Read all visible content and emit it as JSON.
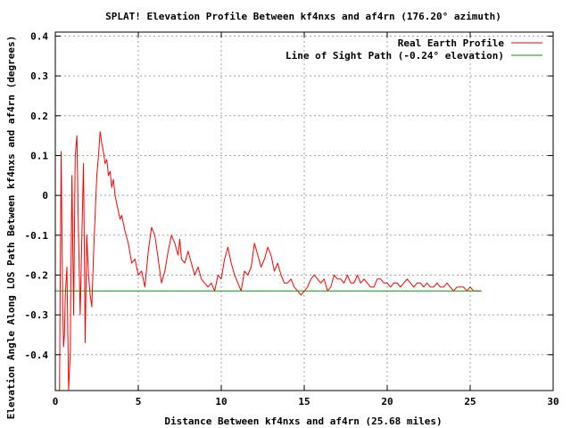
{
  "chart_data": {
    "type": "line",
    "title": "SPLAT! Elevation Profile Between kf4nxs and af4rn (176.20° azimuth)",
    "xlabel": "Distance Between kf4nxs and af4rn (25.68 miles)",
    "ylabel": "Elevation Angle Along LOS Path Between kf4nxs and af4rn (degrees)",
    "xlim": [
      0,
      30
    ],
    "ylim": [
      -0.49,
      0.41
    ],
    "x_ticks": [
      0,
      5,
      10,
      15,
      20,
      25,
      30
    ],
    "x_tick_labels": [
      "0",
      "5",
      "10",
      "15",
      "20",
      "25",
      "30"
    ],
    "y_ticks": [
      -0.4,
      -0.3,
      -0.2,
      -0.1,
      0,
      0.1,
      0.2,
      0.3,
      0.4
    ],
    "y_tick_labels": [
      "-0.4",
      "-0.3",
      "-0.2",
      "-0.1",
      "0",
      "0.1",
      "0.2",
      "0.3",
      "0.4"
    ],
    "grid": true,
    "legend_position": "top-right",
    "series": [
      {
        "name": "Real Earth Profile",
        "color": "#ff0000",
        "x": [
          0.25,
          0.35,
          0.45,
          0.5,
          0.55,
          0.6,
          0.7,
          0.8,
          0.9,
          1.0,
          1.1,
          1.2,
          1.3,
          1.4,
          1.5,
          1.6,
          1.7,
          1.8,
          1.9,
          2.0,
          2.1,
          2.2,
          2.3,
          2.4,
          2.5,
          2.6,
          2.7,
          2.8,
          2.9,
          3.0,
          3.1,
          3.2,
          3.3,
          3.4,
          3.5,
          3.6,
          3.7,
          3.8,
          3.9,
          4.0,
          4.2,
          4.4,
          4.6,
          4.8,
          5.0,
          5.2,
          5.4,
          5.6,
          5.8,
          6.0,
          6.2,
          6.4,
          6.6,
          6.8,
          7.0,
          7.2,
          7.4,
          7.5,
          7.6,
          7.8,
          8.0,
          8.2,
          8.4,
          8.6,
          8.8,
          9.0,
          9.2,
          9.4,
          9.6,
          9.8,
          10.0,
          10.2,
          10.4,
          10.6,
          10.8,
          11.0,
          11.2,
          11.4,
          11.6,
          11.8,
          12.0,
          12.2,
          12.4,
          12.6,
          12.8,
          13.0,
          13.2,
          13.4,
          13.6,
          13.8,
          14.0,
          14.2,
          14.4,
          14.6,
          14.8,
          15.0,
          15.2,
          15.4,
          15.6,
          15.8,
          16.0,
          16.2,
          16.4,
          16.6,
          16.8,
          17.0,
          17.2,
          17.4,
          17.6,
          17.8,
          18.0,
          18.2,
          18.4,
          18.6,
          18.8,
          19.0,
          19.2,
          19.4,
          19.6,
          19.8,
          20.0,
          20.2,
          20.4,
          20.6,
          20.8,
          21.0,
          21.2,
          21.4,
          21.6,
          21.8,
          22.0,
          22.2,
          22.4,
          22.6,
          22.8,
          23.0,
          23.2,
          23.4,
          23.6,
          23.8,
          24.0,
          24.2,
          24.4,
          24.6,
          24.8,
          25.0,
          25.2,
          25.4,
          25.6,
          25.68
        ],
        "values": [
          -0.49,
          0.11,
          -0.3,
          -0.38,
          -0.35,
          -0.25,
          -0.18,
          -0.49,
          -0.4,
          0.05,
          -0.3,
          0.1,
          0.15,
          -0.1,
          -0.3,
          -0.1,
          0.08,
          -0.37,
          -0.1,
          -0.2,
          -0.25,
          -0.28,
          -0.15,
          -0.05,
          0.05,
          0.1,
          0.16,
          0.13,
          0.11,
          0.08,
          0.09,
          0.05,
          0.06,
          0.02,
          0.04,
          0.0,
          -0.02,
          -0.04,
          -0.06,
          -0.05,
          -0.09,
          -0.12,
          -0.17,
          -0.16,
          -0.2,
          -0.19,
          -0.23,
          -0.14,
          -0.08,
          -0.1,
          -0.16,
          -0.22,
          -0.19,
          -0.14,
          -0.1,
          -0.12,
          -0.15,
          -0.11,
          -0.16,
          -0.17,
          -0.14,
          -0.17,
          -0.2,
          -0.18,
          -0.21,
          -0.22,
          -0.23,
          -0.22,
          -0.24,
          -0.2,
          -0.21,
          -0.16,
          -0.13,
          -0.17,
          -0.2,
          -0.22,
          -0.24,
          -0.19,
          -0.2,
          -0.18,
          -0.12,
          -0.15,
          -0.18,
          -0.16,
          -0.13,
          -0.15,
          -0.19,
          -0.17,
          -0.2,
          -0.22,
          -0.22,
          -0.21,
          -0.23,
          -0.24,
          -0.25,
          -0.24,
          -0.23,
          -0.21,
          -0.2,
          -0.21,
          -0.22,
          -0.21,
          -0.24,
          -0.23,
          -0.2,
          -0.21,
          -0.21,
          -0.22,
          -0.2,
          -0.22,
          -0.22,
          -0.2,
          -0.22,
          -0.21,
          -0.22,
          -0.23,
          -0.23,
          -0.21,
          -0.21,
          -0.22,
          -0.22,
          -0.23,
          -0.22,
          -0.22,
          -0.23,
          -0.22,
          -0.21,
          -0.22,
          -0.23,
          -0.22,
          -0.22,
          -0.23,
          -0.22,
          -0.23,
          -0.23,
          -0.22,
          -0.23,
          -0.23,
          -0.22,
          -0.23,
          -0.24,
          -0.23,
          -0.23,
          -0.23,
          -0.24,
          -0.23,
          -0.24,
          -0.24,
          -0.24,
          -0.24
        ]
      },
      {
        "name": "Line of Sight Path (-0.24° elevation)",
        "color": "#00a000",
        "x": [
          0,
          25.68
        ],
        "values": [
          -0.24,
          -0.24
        ]
      }
    ]
  }
}
